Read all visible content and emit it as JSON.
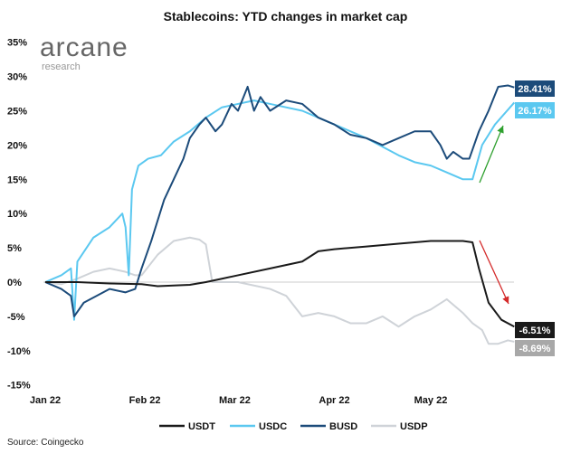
{
  "chart_data": {
    "type": "line",
    "title": "Stablecoins: YTD changes in market cap",
    "xlabel": "",
    "ylabel": "",
    "ylim": [
      -15,
      35
    ],
    "xlim_days": [
      0,
      146
    ],
    "yticks": [
      "35%",
      "30%",
      "25%",
      "20%",
      "15%",
      "10%",
      "5%",
      "0%",
      "-5%",
      "-10%",
      "-15%"
    ],
    "ytick_values": [
      35,
      30,
      25,
      20,
      15,
      10,
      5,
      0,
      -5,
      -10,
      -15
    ],
    "xticks": [
      {
        "label": "Jan 22",
        "day": 0
      },
      {
        "label": "Feb 22",
        "day": 31
      },
      {
        "label": "Mar 22",
        "day": 59
      },
      {
        "label": "Apr 22",
        "day": 90
      },
      {
        "label": "May 22",
        "day": 120
      }
    ],
    "series": [
      {
        "name": "USDT",
        "color": "#1a1a1a",
        "end_label": "-6.51%",
        "end_value": -6.51,
        "x": [
          0,
          10,
          20,
          30,
          35,
          40,
          45,
          50,
          55,
          60,
          70,
          80,
          85,
          90,
          100,
          110,
          120,
          130,
          133,
          135,
          138,
          142,
          146
        ],
        "y": [
          0,
          0,
          -0.2,
          -0.3,
          -0.6,
          -0.5,
          -0.4,
          0,
          0.5,
          1,
          2,
          3,
          4.5,
          4.8,
          5.2,
          5.6,
          6,
          6,
          5.8,
          2,
          -3,
          -5.5,
          -6.5
        ]
      },
      {
        "name": "USDC",
        "color": "#5bc8f0",
        "end_label": "26.17%",
        "end_value": 26.17,
        "x": [
          0,
          5,
          8,
          9,
          10,
          15,
          20,
          24,
          25,
          26,
          27,
          29,
          32,
          36,
          40,
          45,
          50,
          55,
          60,
          65,
          70,
          80,
          90,
          100,
          110,
          115,
          120,
          125,
          130,
          133,
          136,
          140,
          146
        ],
        "y": [
          0,
          1,
          2,
          -5.5,
          3,
          6.5,
          8,
          10,
          8,
          1,
          13.5,
          17,
          18,
          18.5,
          20.5,
          22,
          24,
          25.5,
          26,
          26.5,
          26,
          25,
          23,
          21,
          18.5,
          17.5,
          17,
          16,
          15,
          15,
          20,
          23,
          26.2
        ]
      },
      {
        "name": "BUSD",
        "color": "#1c4b7a",
        "end_label": "28.41%",
        "end_value": 28.41,
        "x": [
          0,
          5,
          8,
          9,
          12,
          20,
          25,
          28,
          30,
          33,
          37,
          40,
          43,
          45,
          48,
          50,
          53,
          55,
          58,
          60,
          63,
          65,
          67,
          70,
          75,
          80,
          85,
          90,
          95,
          100,
          105,
          110,
          115,
          120,
          123,
          125,
          127,
          130,
          132,
          135,
          138,
          141,
          144,
          146
        ],
        "y": [
          0,
          -1,
          -2,
          -5,
          -3,
          -1,
          -1.5,
          -1,
          2,
          6,
          12,
          15,
          18,
          21,
          23,
          24,
          22,
          23,
          26,
          25,
          28.5,
          25,
          27,
          25,
          26.5,
          26,
          24,
          23,
          21.5,
          21,
          20,
          21,
          22,
          22,
          20,
          18,
          19,
          18,
          18,
          22,
          25,
          28.5,
          28.7,
          28.4
        ]
      },
      {
        "name": "USDP",
        "color": "#cfd3d8",
        "end_label": "-8.69%",
        "end_value": -8.69,
        "x": [
          0,
          5,
          10,
          15,
          20,
          25,
          28,
          30,
          35,
          40,
          45,
          48,
          50,
          52,
          60,
          70,
          75,
          80,
          85,
          90,
          95,
          100,
          105,
          110,
          115,
          120,
          125,
          130,
          133,
          136,
          138,
          141,
          144,
          146
        ],
        "y": [
          0,
          -0.3,
          0.5,
          1.5,
          2,
          1.5,
          1,
          1,
          4,
          6,
          6.5,
          6.2,
          5.5,
          0,
          0,
          -1,
          -2,
          -5,
          -4.5,
          -5,
          -6,
          -6,
          -5,
          -6.5,
          -5,
          -4,
          -2.5,
          -4.5,
          -6,
          -7,
          -9,
          -9,
          -8.5,
          -8.7
        ]
      }
    ],
    "legend": "bottom",
    "legend_entries": [
      "USDT",
      "USDC",
      "BUSD",
      "USDP"
    ],
    "annotations": [
      {
        "type": "arrow",
        "color": "#2ea02e",
        "direction": "up"
      },
      {
        "type": "arrow",
        "color": "#d42a2a",
        "direction": "down"
      }
    ],
    "grid": false
  },
  "logo": {
    "name": "arcane",
    "sub": "research"
  },
  "source": "Source: Coingecko"
}
